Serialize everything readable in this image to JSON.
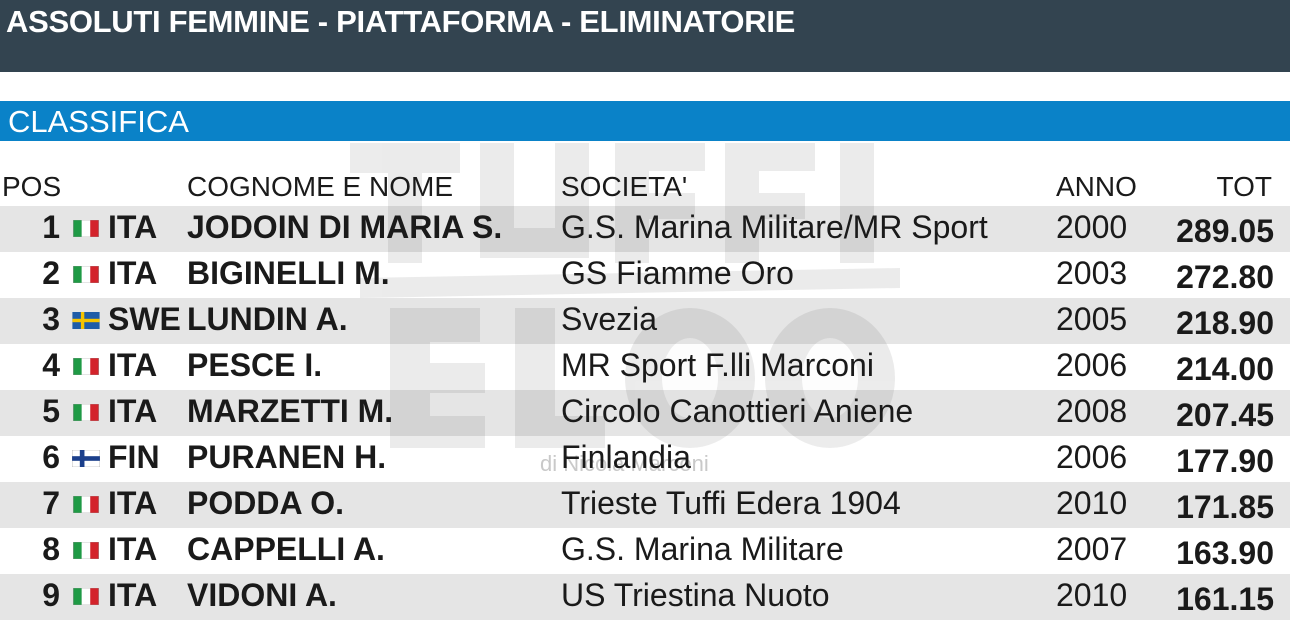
{
  "header": {
    "title": "ASSOLUTI FEMMINE - PIATTAFORMA - ELIMINATORIE"
  },
  "section": {
    "title": "CLASSIFICA"
  },
  "watermark": {
    "credit": "di Nicola Marconi"
  },
  "columns": {
    "pos": "POS",
    "name": "COGNOME E NOME",
    "club": "SOCIETA'",
    "year": "ANNO",
    "tot": "TOT"
  },
  "colors": {
    "header_bg": "#334450",
    "section_bg": "#0a82c8",
    "row_alt_bg": "#e6e6e6"
  },
  "rows": [
    {
      "pos": "1",
      "flag": "italy-flag-icon",
      "nat": "ITA",
      "name": "JODOIN DI MARIA S.",
      "club": "G.S. Marina Militare/MR Sport",
      "year": "2000",
      "tot": "289.05"
    },
    {
      "pos": "2",
      "flag": "italy-flag-icon",
      "nat": "ITA",
      "name": "BIGINELLI M.",
      "club": "GS Fiamme Oro",
      "year": "2003",
      "tot": "272.80"
    },
    {
      "pos": "3",
      "flag": "sweden-flag-icon",
      "nat": "SWE",
      "name": "LUNDIN A.",
      "club": "Svezia",
      "year": "2005",
      "tot": "218.90"
    },
    {
      "pos": "4",
      "flag": "italy-flag-icon",
      "nat": "ITA",
      "name": "PESCE I.",
      "club": "MR Sport F.lli Marconi",
      "year": "2006",
      "tot": "214.00"
    },
    {
      "pos": "5",
      "flag": "italy-flag-icon",
      "nat": "ITA",
      "name": "MARZETTI M.",
      "club": "Circolo Canottieri Aniene",
      "year": "2008",
      "tot": "207.45"
    },
    {
      "pos": "6",
      "flag": "finland-flag-icon",
      "nat": "FIN",
      "name": "PURANEN H.",
      "club": "Finlandia",
      "year": "2006",
      "tot": "177.90"
    },
    {
      "pos": "7",
      "flag": "italy-flag-icon",
      "nat": "ITA",
      "name": "PODDA O.",
      "club": "Trieste Tuffi Edera 1904",
      "year": "2010",
      "tot": "171.85"
    },
    {
      "pos": "8",
      "flag": "italy-flag-icon",
      "nat": "ITA",
      "name": "CAPPELLI A.",
      "club": "G.S. Marina Militare",
      "year": "2007",
      "tot": "163.90"
    },
    {
      "pos": "9",
      "flag": "italy-flag-icon",
      "nat": "ITA",
      "name": "VIDONI A.",
      "club": "US Triestina Nuoto",
      "year": "2010",
      "tot": "161.15"
    }
  ]
}
